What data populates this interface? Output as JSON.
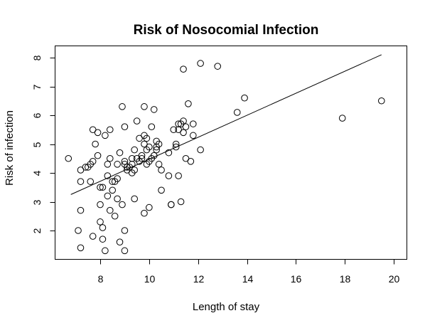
{
  "chart_data": {
    "type": "scatter",
    "title": "Risk of Nosocomial Infection",
    "xlabel": "Length of stay",
    "ylabel": "Risk of infection",
    "xlim": [
      6.7,
      19.6
    ],
    "ylim": [
      1.3,
      8.1
    ],
    "xticks": [
      8,
      10,
      12,
      14,
      16,
      18,
      20
    ],
    "yticks": [
      2,
      3,
      4,
      5,
      6,
      7,
      8
    ],
    "grid": false,
    "legend": "none",
    "regression_line": {
      "x": [
        6.8,
        19.5
      ],
      "y": [
        3.25,
        8.1
      ]
    },
    "points": [
      {
        "x": 6.7,
        "y": 4.5
      },
      {
        "x": 7.1,
        "y": 2.0
      },
      {
        "x": 7.2,
        "y": 1.4
      },
      {
        "x": 7.2,
        "y": 2.7
      },
      {
        "x": 7.2,
        "y": 3.7
      },
      {
        "x": 7.2,
        "y": 4.1
      },
      {
        "x": 7.4,
        "y": 4.2
      },
      {
        "x": 7.5,
        "y": 4.2
      },
      {
        "x": 7.6,
        "y": 3.7
      },
      {
        "x": 7.6,
        "y": 4.3
      },
      {
        "x": 7.7,
        "y": 4.4
      },
      {
        "x": 7.7,
        "y": 5.5
      },
      {
        "x": 7.7,
        "y": 1.8
      },
      {
        "x": 7.8,
        "y": 5.0
      },
      {
        "x": 7.9,
        "y": 4.6
      },
      {
        "x": 7.9,
        "y": 5.4
      },
      {
        "x": 8.0,
        "y": 2.9
      },
      {
        "x": 8.0,
        "y": 3.5
      },
      {
        "x": 8.0,
        "y": 2.3
      },
      {
        "x": 8.1,
        "y": 2.1
      },
      {
        "x": 8.1,
        "y": 3.5
      },
      {
        "x": 8.1,
        "y": 1.7
      },
      {
        "x": 8.2,
        "y": 5.3
      },
      {
        "x": 8.2,
        "y": 1.3
      },
      {
        "x": 8.3,
        "y": 3.2
      },
      {
        "x": 8.3,
        "y": 3.9
      },
      {
        "x": 8.3,
        "y": 4.3
      },
      {
        "x": 8.4,
        "y": 4.5
      },
      {
        "x": 8.4,
        "y": 2.7
      },
      {
        "x": 8.4,
        "y": 5.5
      },
      {
        "x": 8.5,
        "y": 3.4
      },
      {
        "x": 8.5,
        "y": 3.7
      },
      {
        "x": 8.6,
        "y": 2.5
      },
      {
        "x": 8.6,
        "y": 3.7
      },
      {
        "x": 8.7,
        "y": 3.8
      },
      {
        "x": 8.7,
        "y": 3.1
      },
      {
        "x": 8.7,
        "y": 4.3
      },
      {
        "x": 8.8,
        "y": 4.7
      },
      {
        "x": 8.8,
        "y": 1.6
      },
      {
        "x": 8.9,
        "y": 6.3
      },
      {
        "x": 8.9,
        "y": 2.9
      },
      {
        "x": 9.0,
        "y": 2.0
      },
      {
        "x": 9.0,
        "y": 1.3
      },
      {
        "x": 9.0,
        "y": 4.3
      },
      {
        "x": 9.0,
        "y": 5.6
      },
      {
        "x": 9.0,
        "y": 4.4
      },
      {
        "x": 9.1,
        "y": 4.2
      },
      {
        "x": 9.1,
        "y": 4.1
      },
      {
        "x": 9.2,
        "y": 4.2
      },
      {
        "x": 9.3,
        "y": 4.0
      },
      {
        "x": 9.3,
        "y": 4.3
      },
      {
        "x": 9.3,
        "y": 4.5
      },
      {
        "x": 9.4,
        "y": 4.1
      },
      {
        "x": 9.4,
        "y": 4.8
      },
      {
        "x": 9.4,
        "y": 3.1
      },
      {
        "x": 9.5,
        "y": 4.5
      },
      {
        "x": 9.5,
        "y": 5.8
      },
      {
        "x": 9.6,
        "y": 5.2
      },
      {
        "x": 9.6,
        "y": 4.4
      },
      {
        "x": 9.7,
        "y": 4.6
      },
      {
        "x": 9.7,
        "y": 4.5
      },
      {
        "x": 9.8,
        "y": 5.0
      },
      {
        "x": 9.8,
        "y": 5.3
      },
      {
        "x": 9.8,
        "y": 6.3
      },
      {
        "x": 9.8,
        "y": 2.6
      },
      {
        "x": 9.9,
        "y": 4.8
      },
      {
        "x": 9.9,
        "y": 5.2
      },
      {
        "x": 9.9,
        "y": 4.3
      },
      {
        "x": 10.0,
        "y": 4.9
      },
      {
        "x": 10.0,
        "y": 2.8
      },
      {
        "x": 10.0,
        "y": 4.4
      },
      {
        "x": 10.1,
        "y": 4.5
      },
      {
        "x": 10.1,
        "y": 5.6
      },
      {
        "x": 10.2,
        "y": 6.2
      },
      {
        "x": 10.2,
        "y": 4.6
      },
      {
        "x": 10.3,
        "y": 4.8
      },
      {
        "x": 10.3,
        "y": 4.9
      },
      {
        "x": 10.3,
        "y": 5.1
      },
      {
        "x": 10.4,
        "y": 5.0
      },
      {
        "x": 10.4,
        "y": 4.3
      },
      {
        "x": 10.5,
        "y": 3.4
      },
      {
        "x": 10.5,
        "y": 4.1
      },
      {
        "x": 10.8,
        "y": 4.7
      },
      {
        "x": 10.8,
        "y": 3.9
      },
      {
        "x": 10.9,
        "y": 2.9
      },
      {
        "x": 10.9,
        "y": 2.9
      },
      {
        "x": 11.0,
        "y": 5.5
      },
      {
        "x": 11.1,
        "y": 5.0
      },
      {
        "x": 11.1,
        "y": 4.9
      },
      {
        "x": 11.2,
        "y": 5.5
      },
      {
        "x": 11.2,
        "y": 5.7
      },
      {
        "x": 11.3,
        "y": 5.7
      },
      {
        "x": 11.2,
        "y": 3.9
      },
      {
        "x": 11.3,
        "y": 3.0
      },
      {
        "x": 11.4,
        "y": 5.4
      },
      {
        "x": 11.4,
        "y": 5.8
      },
      {
        "x": 11.4,
        "y": 7.6
      },
      {
        "x": 11.5,
        "y": 4.5
      },
      {
        "x": 11.5,
        "y": 5.6
      },
      {
        "x": 11.6,
        "y": 6.4
      },
      {
        "x": 11.7,
        "y": 4.4
      },
      {
        "x": 11.8,
        "y": 5.3
      },
      {
        "x": 11.8,
        "y": 5.7
      },
      {
        "x": 12.1,
        "y": 4.8
      },
      {
        "x": 12.1,
        "y": 7.8
      },
      {
        "x": 12.8,
        "y": 7.7
      },
      {
        "x": 13.6,
        "y": 6.1
      },
      {
        "x": 13.9,
        "y": 6.6
      },
      {
        "x": 17.9,
        "y": 5.9
      },
      {
        "x": 19.5,
        "y": 6.5
      }
    ]
  }
}
